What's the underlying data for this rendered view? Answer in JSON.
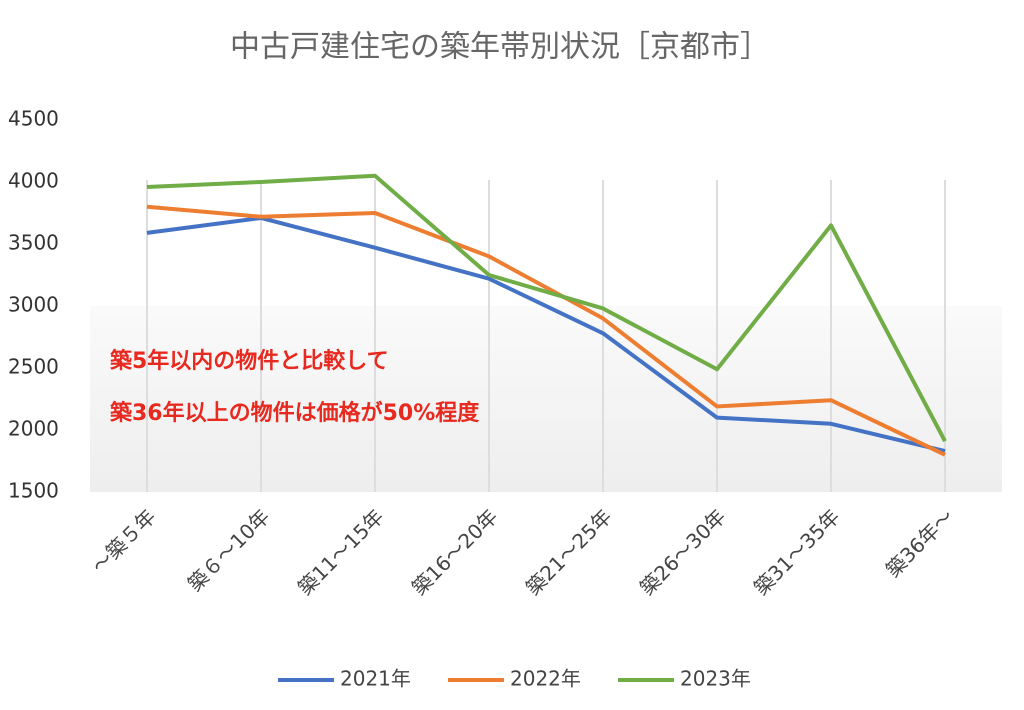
{
  "chart_data": {
    "type": "line",
    "title": "中古戸建住宅の築年帯別状況［京都市］",
    "categories": [
      "～築５年",
      "築６～10年",
      "築11～15年",
      "築16～20年",
      "築21～25年",
      "築26～30年",
      "築31～35年",
      "築36年～"
    ],
    "series": [
      {
        "name": "2021年",
        "color": "#4472c4",
        "values": [
          3590,
          3710,
          3470,
          3220,
          2780,
          2100,
          2050,
          1830
        ]
      },
      {
        "name": "2022年",
        "color": "#ed7d31",
        "values": [
          3800,
          3720,
          3750,
          3400,
          2900,
          2190,
          2240,
          1800
        ]
      },
      {
        "name": "2023年",
        "color": "#70ad47",
        "values": [
          3960,
          4000,
          4050,
          3250,
          2980,
          2490,
          3650,
          1910
        ]
      }
    ],
    "ylim": [
      1500,
      4500
    ],
    "yticks": [
      1500,
      2000,
      2500,
      3000,
      3500,
      4000,
      4500
    ],
    "grid": "vertical",
    "legend": "bottom",
    "annotations": [
      "築5年以内の物件と比較して",
      "築36年以上の物件は価格が50%程度"
    ]
  }
}
